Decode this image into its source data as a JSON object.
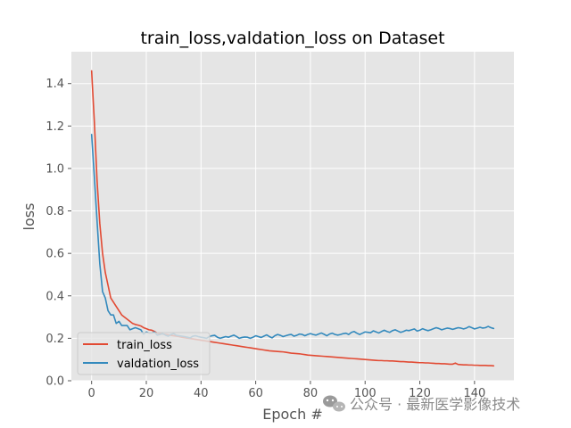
{
  "chart_data": {
    "type": "line",
    "title": "train_loss,valdation_loss on Dataset",
    "xlabel": "Epoch #",
    "ylabel": "loss",
    "xlim": [
      -7.4,
      154.4
    ],
    "ylim": [
      0.0,
      1.55
    ],
    "xticks": [
      0,
      20,
      40,
      60,
      80,
      100,
      120,
      140
    ],
    "yticks": [
      0.0,
      0.2,
      0.4,
      0.6,
      0.8,
      1.0,
      1.2,
      1.4
    ],
    "grid": true,
    "legend_position": "lower-left",
    "style": "ggplot",
    "series": [
      {
        "name": "train_loss",
        "color": "#E24A33",
        "x": [
          0,
          1,
          2,
          3,
          4,
          5,
          6,
          7,
          8,
          9,
          10,
          11,
          12,
          13,
          14,
          15,
          16,
          17,
          18,
          19,
          20,
          21,
          22,
          23,
          24,
          25,
          26,
          27,
          28,
          29,
          30,
          31,
          32,
          33,
          34,
          35,
          36,
          37,
          38,
          39,
          40,
          41,
          42,
          43,
          44,
          45,
          46,
          47,
          48,
          49,
          50,
          51,
          52,
          53,
          54,
          55,
          56,
          57,
          58,
          59,
          60,
          61,
          62,
          63,
          64,
          65,
          66,
          67,
          68,
          69,
          70,
          71,
          72,
          73,
          74,
          75,
          76,
          77,
          78,
          79,
          80,
          81,
          82,
          83,
          84,
          85,
          86,
          87,
          88,
          89,
          90,
          91,
          92,
          93,
          94,
          95,
          96,
          97,
          98,
          99,
          100,
          101,
          102,
          103,
          104,
          105,
          106,
          107,
          108,
          109,
          110,
          111,
          112,
          113,
          114,
          115,
          116,
          117,
          118,
          119,
          120,
          121,
          122,
          123,
          124,
          125,
          126,
          127,
          128,
          129,
          130,
          131,
          132,
          133,
          134,
          135,
          136,
          137,
          138,
          139,
          140,
          141,
          142,
          143,
          144,
          145,
          146,
          147
        ],
        "y": [
          1.46,
          1.22,
          0.94,
          0.74,
          0.6,
          0.51,
          0.45,
          0.39,
          0.37,
          0.35,
          0.33,
          0.31,
          0.3,
          0.29,
          0.28,
          0.27,
          0.265,
          0.262,
          0.258,
          0.25,
          0.245,
          0.24,
          0.238,
          0.232,
          0.225,
          0.222,
          0.22,
          0.218,
          0.216,
          0.214,
          0.212,
          0.21,
          0.208,
          0.205,
          0.203,
          0.201,
          0.199,
          0.197,
          0.195,
          0.193,
          0.191,
          0.189,
          0.187,
          0.185,
          0.183,
          0.181,
          0.179,
          0.177,
          0.175,
          0.173,
          0.171,
          0.169,
          0.167,
          0.165,
          0.163,
          0.161,
          0.159,
          0.157,
          0.155,
          0.153,
          0.151,
          0.149,
          0.147,
          0.145,
          0.143,
          0.141,
          0.14,
          0.139,
          0.138,
          0.137,
          0.136,
          0.134,
          0.132,
          0.13,
          0.129,
          0.128,
          0.127,
          0.125,
          0.123,
          0.121,
          0.12,
          0.119,
          0.118,
          0.117,
          0.116,
          0.115,
          0.114,
          0.113,
          0.112,
          0.111,
          0.11,
          0.109,
          0.108,
          0.107,
          0.106,
          0.105,
          0.104,
          0.103,
          0.102,
          0.101,
          0.1,
          0.099,
          0.098,
          0.097,
          0.096,
          0.095,
          0.095,
          0.094,
          0.094,
          0.093,
          0.093,
          0.092,
          0.091,
          0.09,
          0.09,
          0.089,
          0.088,
          0.088,
          0.087,
          0.086,
          0.085,
          0.085,
          0.084,
          0.084,
          0.083,
          0.082,
          0.081,
          0.081,
          0.08,
          0.08,
          0.079,
          0.078,
          0.078,
          0.083,
          0.077,
          0.076,
          0.075,
          0.075,
          0.074,
          0.074,
          0.073,
          0.073,
          0.072,
          0.072,
          0.072,
          0.071,
          0.071,
          0.07
        ]
      },
      {
        "name": "valdation_loss",
        "color": "#348ABD",
        "x": [
          0,
          1,
          2,
          3,
          4,
          5,
          6,
          7,
          8,
          9,
          10,
          11,
          12,
          13,
          14,
          15,
          16,
          17,
          18,
          19,
          20,
          21,
          22,
          23,
          24,
          25,
          26,
          27,
          28,
          29,
          30,
          31,
          32,
          33,
          34,
          35,
          36,
          37,
          38,
          39,
          40,
          41,
          42,
          43,
          44,
          45,
          46,
          47,
          48,
          49,
          50,
          51,
          52,
          53,
          54,
          55,
          56,
          57,
          58,
          59,
          60,
          61,
          62,
          63,
          64,
          65,
          66,
          67,
          68,
          69,
          70,
          71,
          72,
          73,
          74,
          75,
          76,
          77,
          78,
          79,
          80,
          81,
          82,
          83,
          84,
          85,
          86,
          87,
          88,
          89,
          90,
          91,
          92,
          93,
          94,
          95,
          96,
          97,
          98,
          99,
          100,
          101,
          102,
          103,
          104,
          105,
          106,
          107,
          108,
          109,
          110,
          111,
          112,
          113,
          114,
          115,
          116,
          117,
          118,
          119,
          120,
          121,
          122,
          123,
          124,
          125,
          126,
          127,
          128,
          129,
          130,
          131,
          132,
          133,
          134,
          135,
          136,
          137,
          138,
          139,
          140,
          141,
          142,
          143,
          144,
          145,
          146,
          147
        ],
        "y": [
          1.16,
          0.96,
          0.75,
          0.55,
          0.42,
          0.39,
          0.33,
          0.31,
          0.31,
          0.27,
          0.28,
          0.26,
          0.26,
          0.26,
          0.24,
          0.245,
          0.25,
          0.245,
          0.24,
          0.22,
          0.23,
          0.225,
          0.225,
          0.23,
          0.215,
          0.218,
          0.222,
          0.215,
          0.21,
          0.218,
          0.222,
          0.214,
          0.212,
          0.21,
          0.208,
          0.205,
          0.202,
          0.21,
          0.212,
          0.208,
          0.205,
          0.203,
          0.2,
          0.208,
          0.212,
          0.214,
          0.205,
          0.2,
          0.204,
          0.208,
          0.205,
          0.21,
          0.215,
          0.208,
          0.2,
          0.204,
          0.206,
          0.205,
          0.2,
          0.205,
          0.212,
          0.208,
          0.204,
          0.21,
          0.216,
          0.208,
          0.202,
          0.212,
          0.218,
          0.214,
          0.208,
          0.212,
          0.216,
          0.218,
          0.21,
          0.214,
          0.22,
          0.218,
          0.212,
          0.218,
          0.222,
          0.218,
          0.215,
          0.22,
          0.225,
          0.219,
          0.212,
          0.22,
          0.224,
          0.218,
          0.215,
          0.218,
          0.222,
          0.224,
          0.218,
          0.228,
          0.232,
          0.224,
          0.218,
          0.224,
          0.23,
          0.228,
          0.226,
          0.235,
          0.23,
          0.225,
          0.232,
          0.238,
          0.232,
          0.228,
          0.236,
          0.24,
          0.234,
          0.228,
          0.232,
          0.238,
          0.236,
          0.24,
          0.244,
          0.234,
          0.238,
          0.245,
          0.24,
          0.236,
          0.24,
          0.245,
          0.25,
          0.246,
          0.24,
          0.244,
          0.248,
          0.246,
          0.242,
          0.246,
          0.25,
          0.248,
          0.244,
          0.248,
          0.255,
          0.25,
          0.244,
          0.248,
          0.252,
          0.248,
          0.25,
          0.256,
          0.25,
          0.246
        ]
      }
    ]
  },
  "watermark": {
    "text": "公众号 · 最新医学影像技术",
    "icon": "wechat-icon"
  },
  "colors": {
    "plot_background": "#E5E5E5",
    "grid": "#FFFFFF",
    "figure_background": "#FFFFFF",
    "tick_text": "#555555"
  }
}
